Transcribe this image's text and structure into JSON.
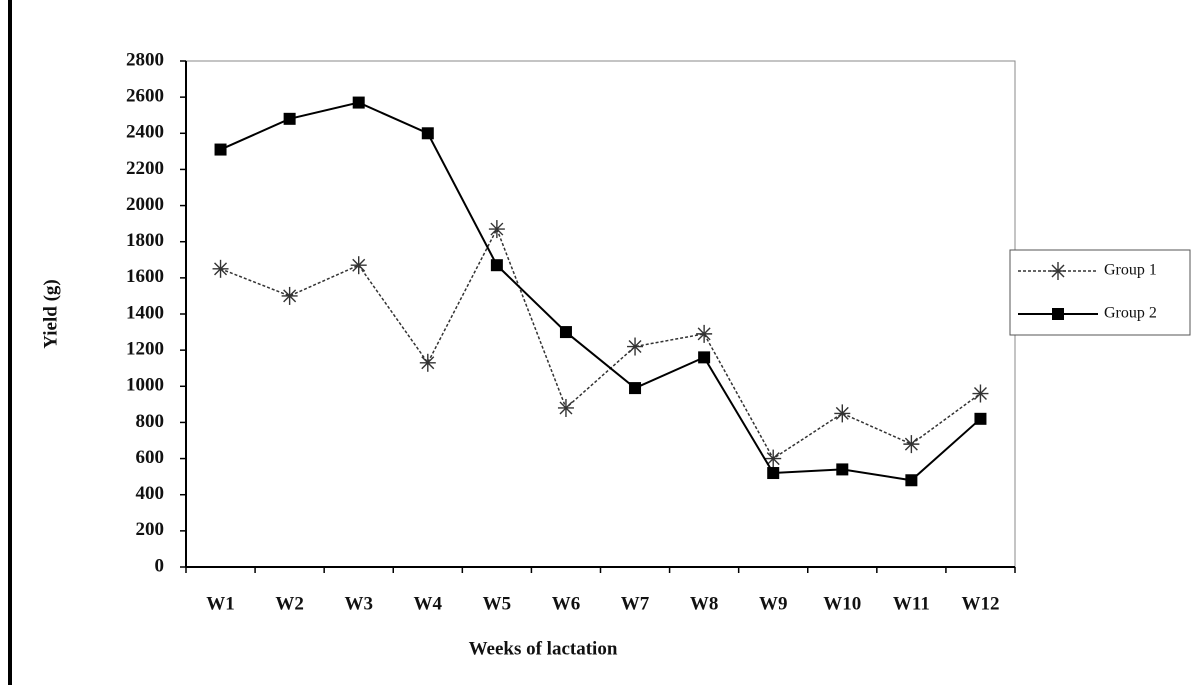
{
  "chart_data": {
    "type": "line",
    "x_label": "Weeks of lactation",
    "y_label": "Yield (g)",
    "categories": [
      "W1",
      "W2",
      "W3",
      "W4",
      "W5",
      "W6",
      "W7",
      "W8",
      "W9",
      "W10",
      "W11",
      "W12"
    ],
    "series": [
      {
        "name": "Group 1",
        "color": "#333333",
        "marker": "asterisk",
        "dash": true,
        "values": [
          1650,
          1500,
          1670,
          1130,
          1870,
          880,
          1220,
          1290,
          600,
          850,
          680,
          960
        ]
      },
      {
        "name": "Group 2",
        "color": "#000000",
        "marker": "square",
        "dash": false,
        "values": [
          2310,
          2480,
          2570,
          2400,
          1670,
          1300,
          990,
          1160,
          520,
          540,
          480,
          820
        ]
      }
    ],
    "ylim": [
      0,
      2800
    ],
    "yticks": [
      0,
      200,
      400,
      600,
      800,
      1000,
      1200,
      1400,
      1600,
      1800,
      2000,
      2200,
      2400,
      2600,
      2800
    ],
    "grid": false,
    "legend": "right"
  }
}
